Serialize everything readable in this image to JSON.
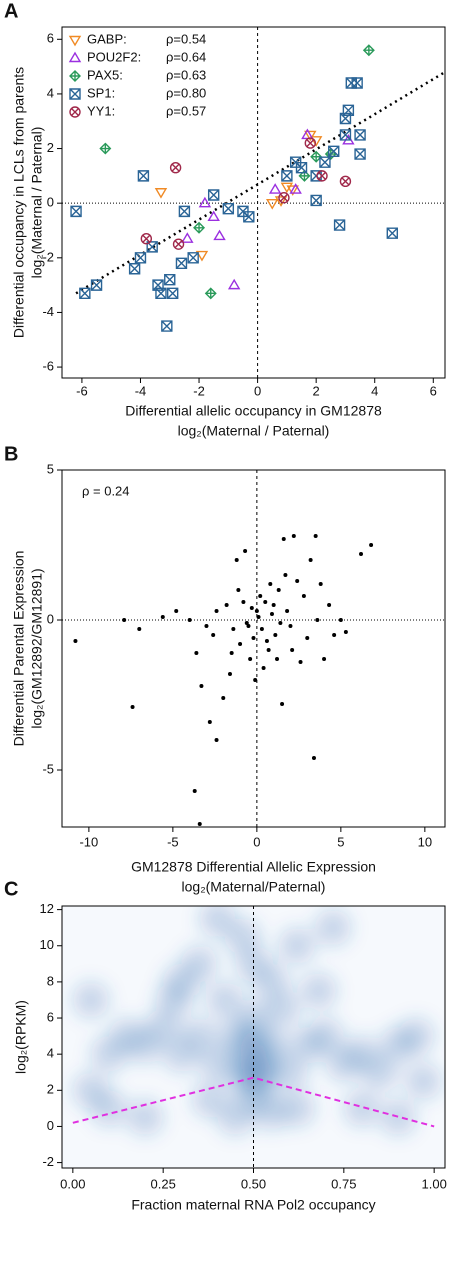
{
  "chart_data": [
    {
      "type": "scatter",
      "panel_label": "A",
      "xlabel": "Differential allelic occupancy in GM12878",
      "xlabel2": "log₂(Maternal / Paternal)",
      "ylabel": "Differential occupancy in LCLs from parents",
      "ylabel2": "log₂(Maternal / Paternal)",
      "xlim": [
        -6.68,
        6.4
      ],
      "ylim": [
        -6.4,
        6.45
      ],
      "xticks": [
        -6,
        -4,
        -2,
        0,
        2,
        4,
        6
      ],
      "yticks": [
        -6,
        -4,
        -2,
        0,
        2,
        4,
        6
      ],
      "vline": 0,
      "hline": 0,
      "legend": "upper left",
      "fit_line": {
        "x": [
          -6.2,
          6.4
        ],
        "y": [
          -3.3,
          4.8
        ]
      },
      "series": [
        {
          "name": "GABP:",
          "rho_label": "ρ=0.54",
          "color": "#f08a24",
          "marker": "triangle-down",
          "x": [
            -3.3,
            -1.9,
            0.5,
            0.8,
            1.0,
            1.2,
            2.0,
            1.8
          ],
          "y": [
            0.4,
            -1.9,
            0.0,
            0.1,
            0.6,
            0.5,
            2.3,
            2.5
          ]
        },
        {
          "name": "POU2F2:",
          "rho_label": "ρ=0.64",
          "color": "#9b30e0",
          "marker": "triangle-up",
          "x": [
            -1.3,
            -2.4,
            -1.5,
            -0.8,
            -1.8,
            0.6,
            1.3,
            3.1,
            1.7
          ],
          "y": [
            -1.2,
            -1.3,
            -0.5,
            -3.0,
            0.0,
            0.5,
            0.5,
            2.3,
            2.5
          ]
        },
        {
          "name": "PAX5:",
          "rho_label": "ρ=0.63",
          "color": "#2a9a5a",
          "marker": "diamond-plus",
          "x": [
            -5.2,
            -1.6,
            -2.0,
            3.8,
            1.6,
            2.5,
            2.0
          ],
          "y": [
            2.0,
            -3.3,
            -0.9,
            5.6,
            1.0,
            1.8,
            1.7
          ]
        },
        {
          "name": "SP1:",
          "rho_label": "ρ=0.80",
          "color": "#2a6496",
          "marker": "square-x",
          "x": [
            -6.2,
            -5.9,
            -5.5,
            -4.2,
            -4.0,
            -3.4,
            -3.3,
            -3.0,
            -2.9,
            -2.6,
            -2.2,
            -2.5,
            -3.1,
            -1.5,
            -1.0,
            -0.5,
            -0.3,
            -3.6,
            -3.9,
            1.0,
            1.3,
            1.5,
            2.0,
            2.3,
            2.8,
            3.0,
            3.0,
            3.1,
            3.2,
            3.4,
            3.5,
            3.5,
            4.6,
            2.6,
            2.0
          ],
          "y": [
            -0.3,
            -3.3,
            -3.0,
            -2.4,
            -2.0,
            -3.0,
            -3.3,
            -2.8,
            -3.3,
            -2.2,
            -2.0,
            -0.3,
            -4.5,
            0.3,
            -0.2,
            -0.3,
            -0.5,
            -1.6,
            1.0,
            1.0,
            1.5,
            1.3,
            0.1,
            1.5,
            -0.8,
            2.5,
            3.1,
            3.4,
            4.4,
            4.4,
            1.8,
            2.5,
            -1.1,
            1.9,
            1.0
          ]
        },
        {
          "name": "YY1:",
          "rho_label": "ρ=0.57",
          "color": "#a0284a",
          "marker": "circle-x",
          "x": [
            -3.8,
            -2.8,
            -2.7,
            0.9,
            2.2,
            3.0,
            1.8
          ],
          "y": [
            -1.3,
            1.3,
            -1.5,
            0.2,
            1.0,
            0.8,
            2.2
          ]
        }
      ]
    },
    {
      "type": "scatter",
      "panel_label": "B",
      "annotation": "ρ = 0.24",
      "xlabel": "GM12878 Differential Allelic Expression",
      "xlabel2": "log₂(Maternal/Paternal)",
      "ylabel": "Differential Parental Expression",
      "ylabel2": "log₂(GM12892/GM12891)",
      "xlim": [
        -11.6,
        11.2
      ],
      "ylim": [
        -6.9,
        5
      ],
      "xticks": [
        -10,
        -5,
        0,
        5,
        10
      ],
      "yticks": [
        -5,
        0,
        5
      ],
      "vline": 0,
      "hline": 0,
      "series": [
        {
          "color": "#000000",
          "marker": "dot",
          "x": [
            -10.8,
            -7.9,
            -7.4,
            -7.0,
            -5.6,
            -4.8,
            -4.0,
            -3.7,
            -3.4,
            -3.6,
            -3.3,
            -2.8,
            -2.4,
            -2.0,
            -1.6,
            -1.2,
            -1.0,
            -0.7,
            -0.5,
            -0.3,
            -0.2,
            0.1,
            0.3,
            0.5,
            0.7,
            0.9,
            1.1,
            1.3,
            1.5,
            1.6,
            1.8,
            2.0,
            2.2,
            2.4,
            2.6,
            2.8,
            3.0,
            3.2,
            3.4,
            3.5,
            3.6,
            4.0,
            4.3,
            4.6,
            5.0,
            5.3,
            6.2,
            6.8,
            -1.8,
            -1.4,
            -0.8,
            -0.4,
            0.2,
            0.6,
            1.0,
            1.4,
            -2.4,
            -2.6,
            -0.1,
            0.4,
            1.7,
            2.1,
            -1.1,
            -0.6,
            0.0,
            0.8,
            -1.5,
            1.2,
            -3.0,
            3.8
          ],
          "y": [
            -0.7,
            0.0,
            -2.9,
            -0.3,
            0.1,
            0.3,
            0.0,
            -5.7,
            -6.8,
            -1.1,
            -2.2,
            -3.4,
            -4.0,
            -2.6,
            -1.8,
            2.0,
            -0.8,
            2.3,
            -0.2,
            0.4,
            -0.6,
            0.1,
            -0.3,
            0.6,
            -1.0,
            0.2,
            -0.5,
            1.0,
            -2.8,
            2.7,
            0.3,
            -0.2,
            2.8,
            1.3,
            -1.4,
            0.8,
            -0.6,
            2.0,
            -4.6,
            2.8,
            0.0,
            -1.3,
            0.5,
            -0.5,
            0.0,
            -0.4,
            2.2,
            2.5,
            0.5,
            -0.3,
            0.6,
            -1.3,
            0.8,
            -0.7,
            0.5,
            -0.1,
            0.3,
            -0.5,
            -2.0,
            -1.6,
            1.5,
            -1.0,
            1.0,
            -0.1,
            0.3,
            1.2,
            -1.1,
            -1.3,
            -0.2,
            1.2
          ]
        }
      ]
    },
    {
      "type": "density",
      "panel_label": "C",
      "xlabel": "Fraction maternal RNA Pol2 occupancy",
      "ylabel": "log₂(RPKM)",
      "xlim": [
        -0.03,
        1.03
      ],
      "ylim": [
        -2.3,
        12.2
      ],
      "xticks": [
        {
          "value": 0,
          "label": "0.00"
        },
        {
          "value": 0.25,
          "label": "0.25"
        },
        {
          "value": 0.5,
          "label": "0.50"
        },
        {
          "value": 0.75,
          "label": "0.75"
        },
        {
          "value": 1,
          "label": "1.00"
        }
      ],
      "yticks": [
        -2,
        0,
        2,
        4,
        6,
        8,
        10,
        12
      ],
      "vline": 0.5,
      "color": "#1f5fa8",
      "curve": {
        "color": "#e030e0",
        "x": [
          0,
          0.5,
          1
        ],
        "y": [
          0.2,
          2.7,
          0.0
        ]
      },
      "x": [
        0.5,
        0.48,
        0.52,
        0.45,
        0.55,
        0.5,
        0.4,
        0.6,
        0.42,
        0.58,
        0.35,
        0.65,
        0.3,
        0.7,
        0.25,
        0.75,
        0.2,
        0.8,
        0.15,
        0.85,
        0.1,
        0.9,
        0.05,
        0.95,
        0.5,
        0.47,
        0.4,
        0.55,
        0.35,
        0.62,
        0.3,
        0.68,
        0.28,
        0.72,
        0.5,
        0.45,
        0.55,
        0.38,
        0.62,
        0.2,
        0.8,
        0.1,
        0.9,
        0.05,
        0.97,
        0.5,
        0.53,
        0.47
      ],
      "y": [
        3,
        4,
        2.5,
        5,
        4.5,
        6,
        3.5,
        3,
        7,
        6.5,
        5,
        4.5,
        4,
        5,
        5.5,
        3.5,
        4.5,
        4,
        5,
        3,
        4,
        4.5,
        7,
        5,
        9,
        10.5,
        11.5,
        8,
        9,
        10,
        8,
        7.5,
        7,
        11,
        1.5,
        0.5,
        0.8,
        1.5,
        1,
        0.5,
        1,
        1,
        0.5,
        2,
        2.5,
        4.8,
        3.5,
        2.8
      ]
    }
  ]
}
